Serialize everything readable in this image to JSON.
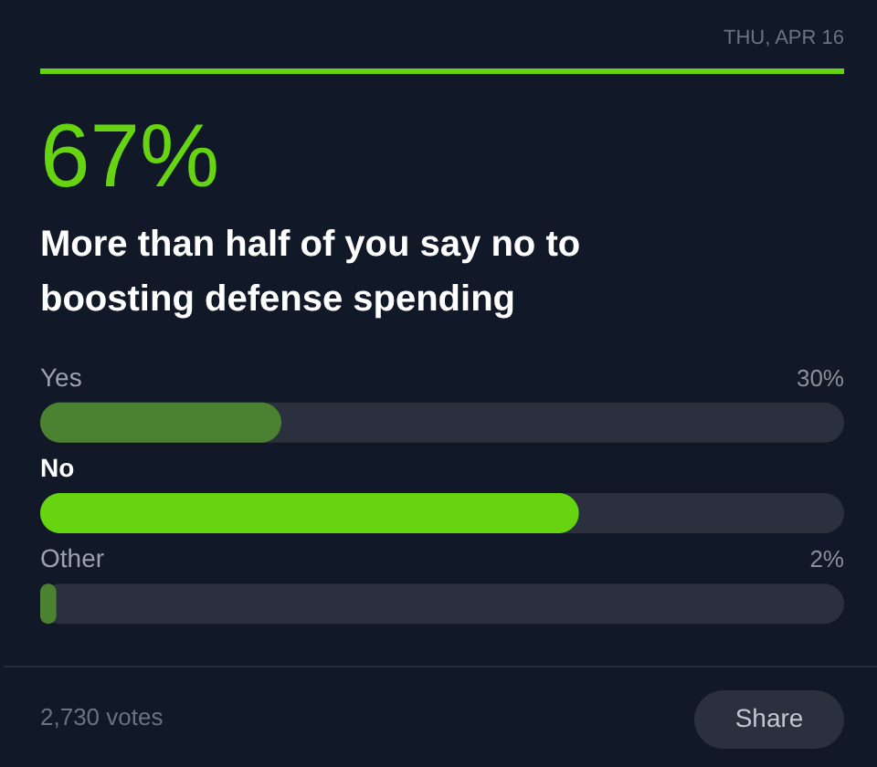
{
  "chart_data": {
    "type": "bar",
    "orientation": "horizontal",
    "title": "More than half of you say no to boosting defense spending",
    "categories": [
      "Yes",
      "No",
      "Other"
    ],
    "values": [
      30,
      67,
      2
    ],
    "colors": [
      "#4a8232",
      "#66d410",
      "#4a8232"
    ],
    "value_labels": [
      "30%",
      null,
      "2%"
    ],
    "xlim": [
      0,
      100
    ],
    "tick_labels": "y",
    "annotations": [
      "THU, APR 16",
      "67%",
      "2,730 votes",
      "Share"
    ]
  }
}
